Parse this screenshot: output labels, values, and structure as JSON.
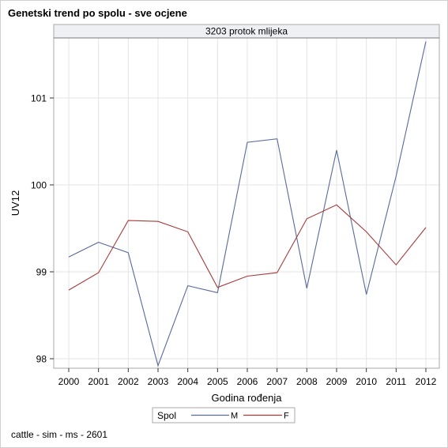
{
  "title": "Genetski trend po spolu - sve ocjene",
  "footnote": "cattle - sim - ms - 2601",
  "chart_data": {
    "type": "line",
    "panel_label": "3203 protok mlijeka",
    "xlabel": "Godina rođenja",
    "ylabel": "UV12",
    "categories": [
      "2000",
      "2001",
      "2002",
      "2003",
      "2004",
      "2005",
      "2006",
      "2007",
      "2008",
      "2009",
      "2010",
      "2011",
      "2012"
    ],
    "ylim": [
      97.92,
      101.65
    ],
    "yticks": [
      98,
      99,
      100,
      101
    ],
    "grid": true,
    "legend_title": "Spol",
    "legend_position": "bottom",
    "series": [
      {
        "name": "M",
        "color": "#5a6a9a",
        "values": [
          99.17,
          99.34,
          99.22,
          97.92,
          98.84,
          98.76,
          100.49,
          100.53,
          98.81,
          100.4,
          98.74,
          100.1,
          101.65
        ]
      },
      {
        "name": "F",
        "color": "#a83a3a",
        "values": [
          98.79,
          98.99,
          99.59,
          99.58,
          99.46,
          98.82,
          98.95,
          98.99,
          99.61,
          99.77,
          99.46,
          99.08,
          99.51
        ]
      }
    ]
  }
}
